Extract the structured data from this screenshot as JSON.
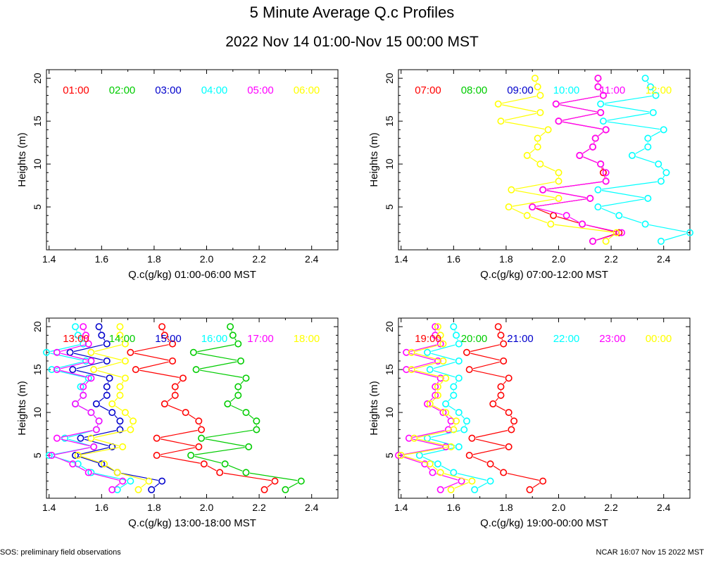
{
  "figure": {
    "title": "5 Minute Average Q.c Profiles",
    "subtitle": "2022 Nov 14 01:00-Nov 15 00:00 MST",
    "footer_left": "SOS: preliminary field observations",
    "footer_right": "NCAR 16:07 Nov 15 2022 MST"
  },
  "colors": {
    "c1": "#ff0000",
    "c2": "#00cc00",
    "c3": "#0000cc",
    "c4": "#00ffff",
    "c5": "#ff00ff",
    "c6": "#ffff00"
  },
  "chart_data": [
    {
      "type": "line",
      "title": "",
      "xlabel": "Q.c(g/kg) 01:00-06:00 MST",
      "ylabel": "Heights (m)",
      "xlim": [
        1.39,
        2.5
      ],
      "ylim": [
        0,
        21
      ],
      "xticks": [
        "1.4",
        "1.6",
        "1.8",
        "2.0",
        "2.2",
        "2.4"
      ],
      "yticks": [
        "5",
        "10",
        "15",
        "20"
      ],
      "heights": [
        1,
        2,
        3,
        4,
        5,
        6,
        7,
        8,
        9,
        10,
        11,
        12,
        13,
        14,
        15,
        16,
        17,
        18,
        19,
        20
      ],
      "series": [
        {
          "name": "01:00",
          "color": "#ff0000",
          "values": []
        },
        {
          "name": "02:00",
          "color": "#00cc00",
          "values": []
        },
        {
          "name": "03:00",
          "color": "#0000cc",
          "values": []
        },
        {
          "name": "04:00",
          "color": "#00ffff",
          "values": []
        },
        {
          "name": "05:00",
          "color": "#ff00ff",
          "values": []
        },
        {
          "name": "06:00",
          "color": "#ffff00",
          "values": []
        }
      ]
    },
    {
      "type": "line",
      "title": "",
      "xlabel": "Q.c(g/kg) 07:00-12:00 MST",
      "ylabel": "Heights (m)",
      "xlim": [
        1.39,
        2.5
      ],
      "ylim": [
        0,
        21
      ],
      "xticks": [
        "1.4",
        "1.6",
        "1.8",
        "2.0",
        "2.2",
        "2.4"
      ],
      "yticks": [
        "5",
        "10",
        "15",
        "20"
      ],
      "heights": [
        1,
        2,
        3,
        4,
        5,
        6,
        7,
        8,
        9,
        10,
        11,
        12,
        13,
        14,
        15,
        16,
        17,
        18,
        19,
        20
      ],
      "series": [
        {
          "name": "07:00",
          "color": "#ff0000",
          "values": [
            2.13,
            2.23,
            2.09,
            1.98,
            1.9,
            2.12,
            1.94,
            2.18,
            2.17,
            2.16,
            2.08,
            2.13,
            2.14,
            2.18,
            2.0,
            2.16,
            1.99,
            2.17,
            2.15,
            2.15
          ]
        },
        {
          "name": "08:00",
          "color": "#00cc00",
          "values": []
        },
        {
          "name": "09:00",
          "color": "#0000cc",
          "values": []
        },
        {
          "name": "10:00",
          "color": "#00ffff",
          "values": [
            2.39,
            2.5,
            2.33,
            2.23,
            2.15,
            2.34,
            2.15,
            2.39,
            2.41,
            2.38,
            2.28,
            2.34,
            2.34,
            2.4,
            2.17,
            2.36,
            2.16,
            2.37,
            2.35,
            2.33
          ]
        },
        {
          "name": "11:00",
          "color": "#ff00ff",
          "values": [
            2.13,
            2.24,
            2.09,
            2.03,
            1.9,
            2.12,
            1.94,
            2.18,
            2.18,
            2.16,
            2.08,
            2.13,
            2.14,
            2.18,
            2.0,
            2.16,
            1.99,
            2.17,
            2.15,
            2.15
          ]
        },
        {
          "name": "12:00",
          "color": "#ffff00",
          "values": [
            2.18,
            2.22,
            1.97,
            1.88,
            1.81,
            2.0,
            1.82,
            2.0,
            2.0,
            1.93,
            1.88,
            1.92,
            1.92,
            1.96,
            1.78,
            1.93,
            1.77,
            1.93,
            1.92,
            1.91
          ]
        }
      ]
    },
    {
      "type": "line",
      "title": "",
      "xlabel": "Q.c(g/kg) 13:00-18:00 MST",
      "ylabel": "Heights (m)",
      "xlim": [
        1.39,
        2.5
      ],
      "ylim": [
        0,
        21
      ],
      "xticks": [
        "1.4",
        "1.6",
        "1.8",
        "2.0",
        "2.2",
        "2.4"
      ],
      "yticks": [
        "5",
        "10",
        "15",
        "20"
      ],
      "heights": [
        1,
        2,
        3,
        4,
        5,
        6,
        7,
        8,
        9,
        10,
        11,
        12,
        13,
        14,
        15,
        16,
        17,
        18,
        19,
        20
      ],
      "series": [
        {
          "name": "13:00",
          "color": "#ff0000",
          "values": [
            2.22,
            2.26,
            2.05,
            1.99,
            1.81,
            1.97,
            1.81,
            1.98,
            1.97,
            1.92,
            1.84,
            1.88,
            1.88,
            1.91,
            1.73,
            1.87,
            1.71,
            1.87,
            1.84,
            1.83
          ]
        },
        {
          "name": "14:00",
          "color": "#00cc00",
          "values": [
            2.3,
            2.36,
            2.15,
            2.07,
            1.94,
            2.16,
            1.98,
            2.19,
            2.19,
            2.15,
            2.08,
            2.12,
            2.12,
            2.15,
            1.96,
            2.13,
            1.95,
            2.12,
            2.1,
            2.09
          ]
        },
        {
          "name": "15:00",
          "color": "#0000cc",
          "values": [
            1.79,
            1.83,
            1.66,
            1.6,
            1.5,
            1.64,
            1.52,
            1.67,
            1.67,
            1.64,
            1.58,
            1.62,
            1.62,
            1.63,
            1.49,
            1.62,
            1.48,
            1.62,
            1.6,
            1.59
          ]
        },
        {
          "name": "16:00",
          "color": "#00ffff",
          "values": [
            1.66,
            1.71,
            1.56,
            1.51,
            1.4,
            1.57,
            1.46,
            1.58,
            1.59,
            1.56,
            1.5,
            1.53,
            1.52,
            1.55,
            1.41,
            1.54,
            1.39,
            1.53,
            1.51,
            1.5
          ]
        },
        {
          "name": "17:00",
          "color": "#ff00ff",
          "values": [
            1.64,
            1.68,
            1.55,
            1.49,
            1.41,
            1.57,
            1.43,
            1.58,
            1.59,
            1.56,
            1.5,
            1.53,
            1.53,
            1.56,
            1.43,
            1.56,
            1.43,
            1.55,
            1.54,
            1.53
          ]
        },
        {
          "name": "18:00",
          "color": "#ffff00",
          "values": [
            1.74,
            1.78,
            1.66,
            1.61,
            1.51,
            1.68,
            1.56,
            1.71,
            1.72,
            1.69,
            1.64,
            1.67,
            1.67,
            1.69,
            1.57,
            1.69,
            1.56,
            1.69,
            1.67,
            1.67
          ]
        }
      ]
    },
    {
      "type": "line",
      "title": "",
      "xlabel": "Q.c(g/kg) 19:00-00:00 MST",
      "ylabel": "Heights (m)",
      "xlim": [
        1.39,
        2.5
      ],
      "ylim": [
        0,
        21
      ],
      "xticks": [
        "1.4",
        "1.6",
        "1.8",
        "2.0",
        "2.2",
        "2.4"
      ],
      "yticks": [
        "5",
        "10",
        "15",
        "20"
      ],
      "heights": [
        1,
        2,
        3,
        4,
        5,
        6,
        7,
        8,
        9,
        10,
        11,
        12,
        13,
        14,
        15,
        16,
        17,
        18,
        19,
        20
      ],
      "series": [
        {
          "name": "19:00",
          "color": "#ff0000",
          "values": [
            1.89,
            1.94,
            1.79,
            1.74,
            1.66,
            1.81,
            1.67,
            1.82,
            1.83,
            1.81,
            1.75,
            1.78,
            1.78,
            1.81,
            1.66,
            1.79,
            1.65,
            1.79,
            1.78,
            1.77
          ]
        },
        {
          "name": "20:00",
          "color": "#00cc00",
          "values": []
        },
        {
          "name": "21:00",
          "color": "#0000cc",
          "values": []
        },
        {
          "name": "22:00",
          "color": "#00ffff",
          "values": [
            1.68,
            1.74,
            1.6,
            1.54,
            1.47,
            1.62,
            1.5,
            1.64,
            1.65,
            1.62,
            1.57,
            1.6,
            1.6,
            1.62,
            1.51,
            1.62,
            1.5,
            1.62,
            1.61,
            1.6
          ]
        },
        {
          "name": "23:00",
          "color": "#ff00ff",
          "values": [
            1.55,
            1.63,
            1.52,
            1.49,
            1.39,
            1.57,
            1.43,
            1.58,
            1.59,
            1.56,
            1.5,
            1.53,
            1.53,
            1.55,
            1.42,
            1.54,
            1.42,
            1.55,
            1.53,
            1.53
          ]
        },
        {
          "name": "00:00",
          "color": "#ffff00",
          "values": [
            1.59,
            1.67,
            1.55,
            1.51,
            1.4,
            1.59,
            1.45,
            1.6,
            1.61,
            1.57,
            1.51,
            1.54,
            1.54,
            1.57,
            1.44,
            1.56,
            1.44,
            1.56,
            1.55,
            1.54
          ]
        }
      ]
    }
  ]
}
